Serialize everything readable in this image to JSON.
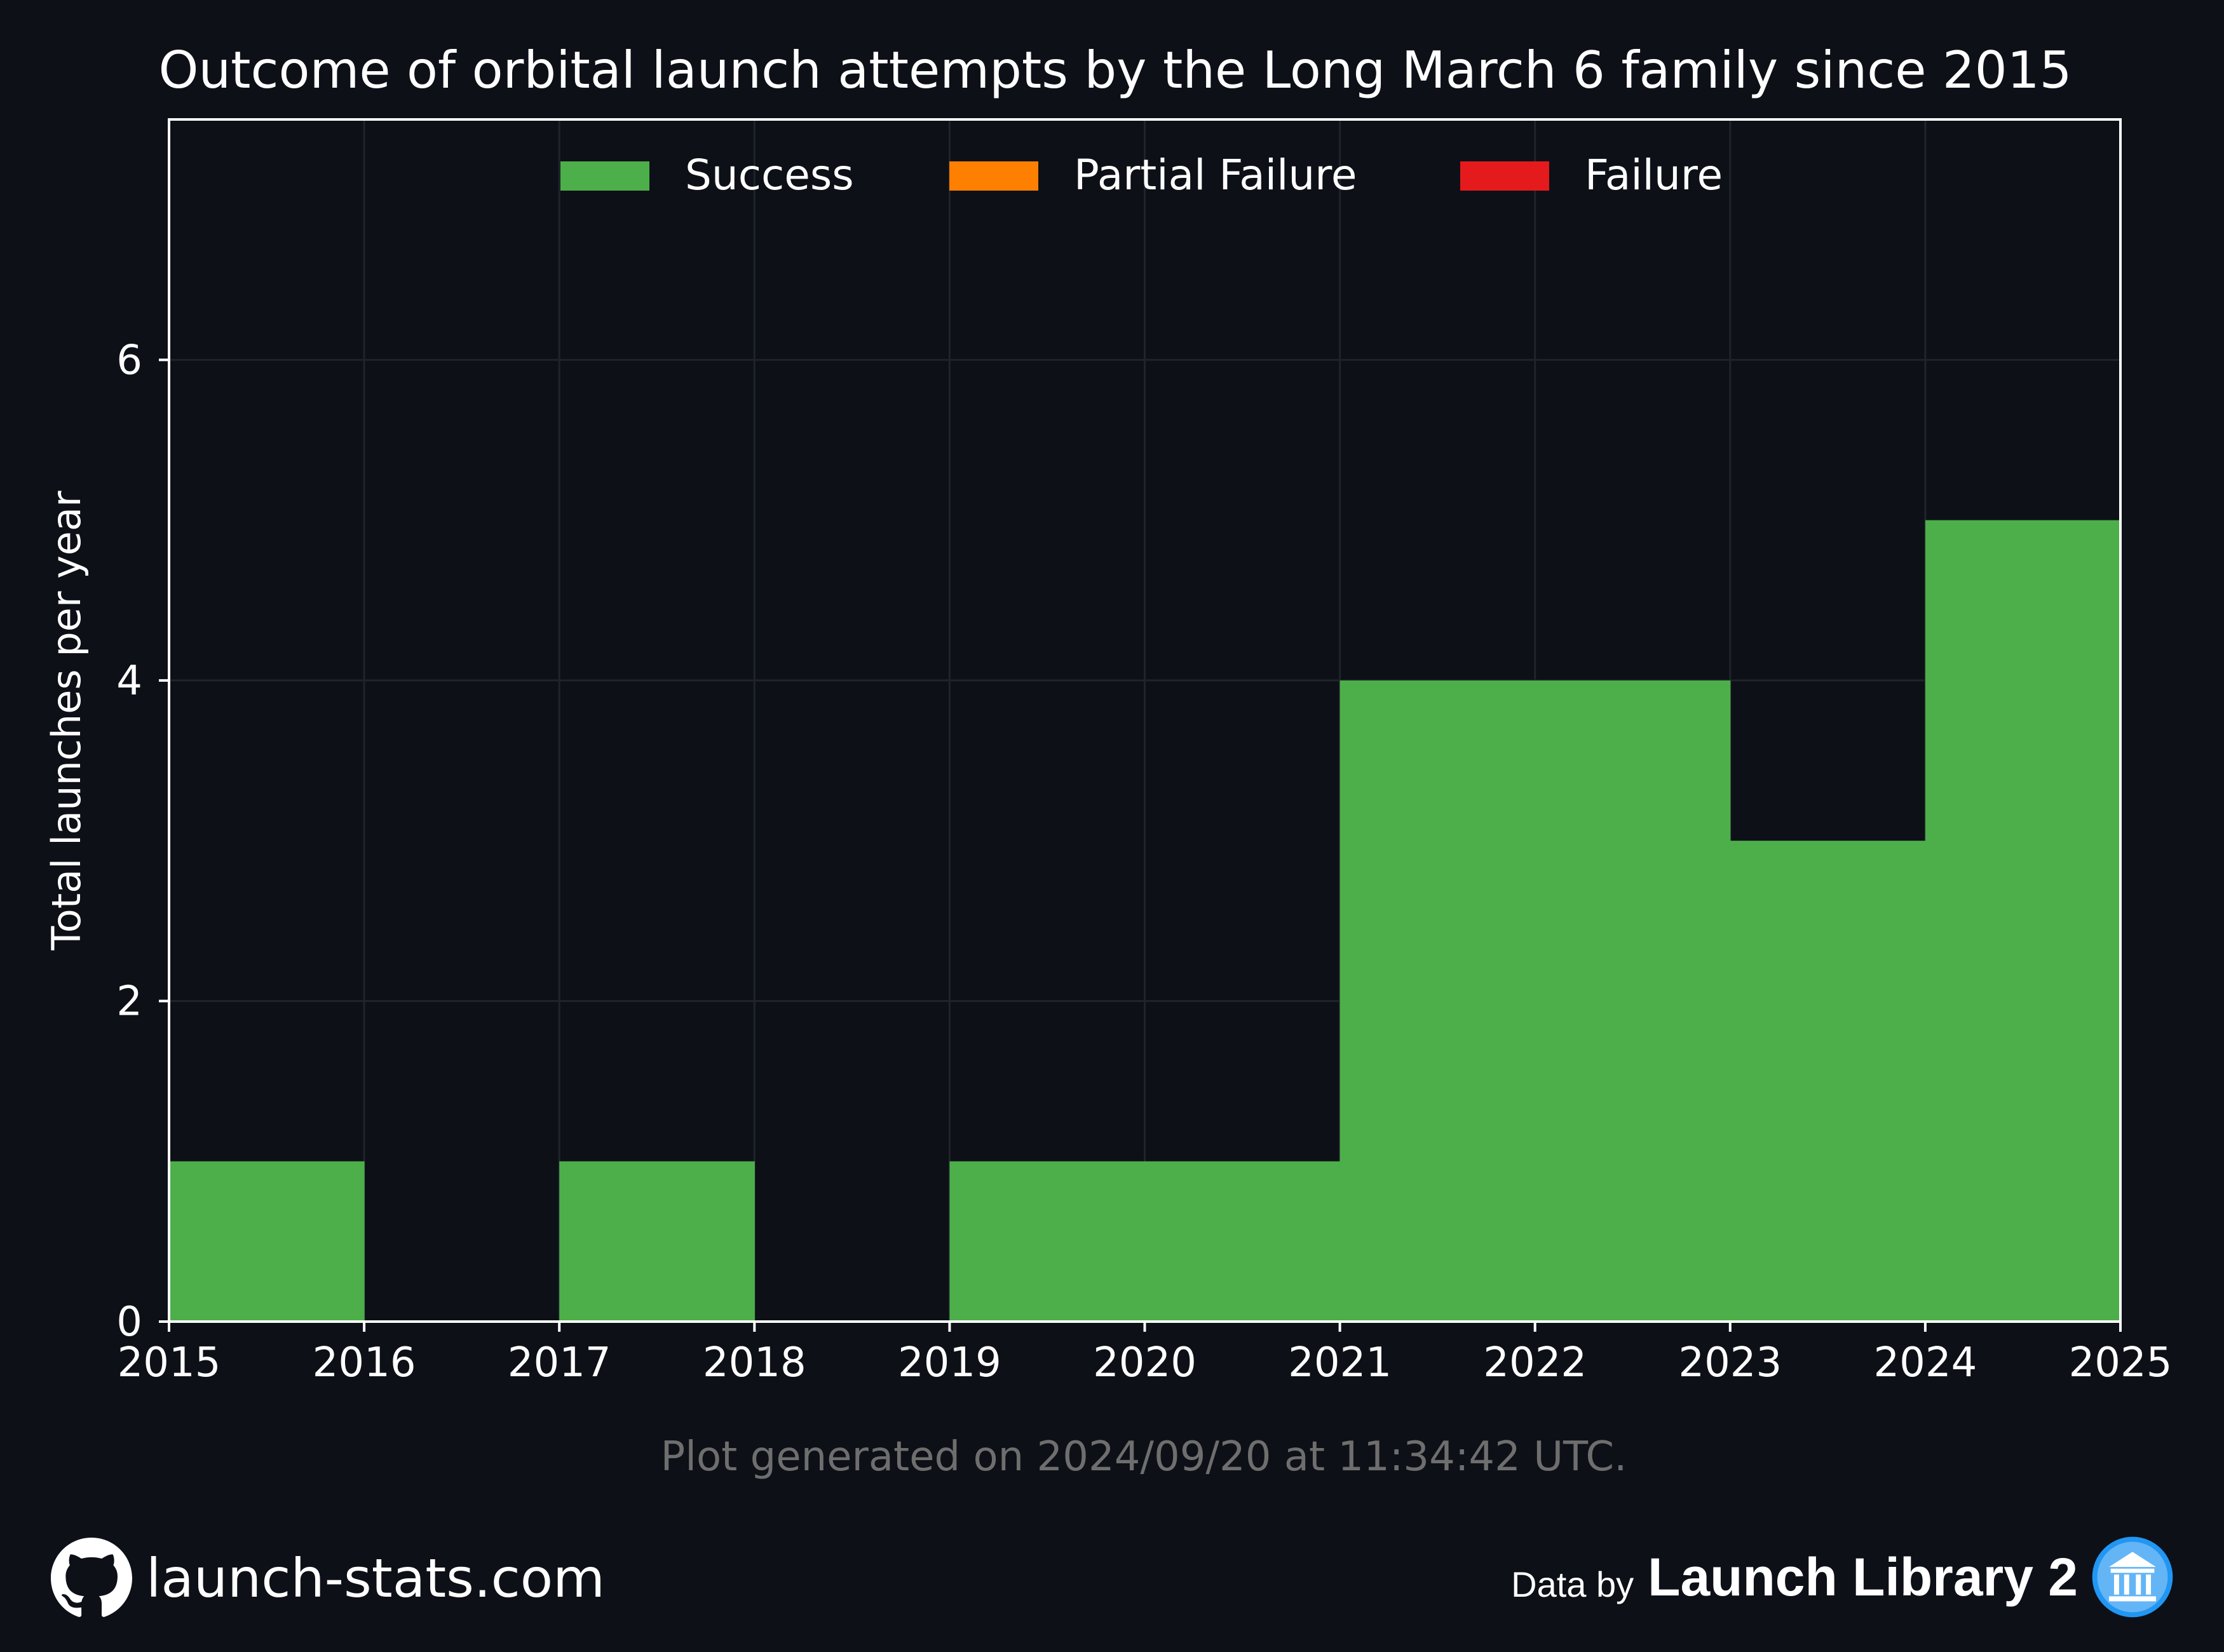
{
  "chart_data": {
    "type": "bar",
    "title": "Outcome of orbital launch attempts by the Long March 6 family since 2015",
    "xlabel": "",
    "ylabel": "Total launches per year",
    "categories": [
      "2015",
      "2016",
      "2017",
      "2018",
      "2019",
      "2020",
      "2021",
      "2022",
      "2023",
      "2024"
    ],
    "series": [
      {
        "name": "Success",
        "color": "#4daf4a",
        "values": [
          1,
          0,
          1,
          0,
          1,
          1,
          4,
          4,
          3,
          5
        ]
      },
      {
        "name": "Partial Failure",
        "color": "#ff7f00",
        "values": [
          0,
          0,
          0,
          0,
          0,
          0,
          0,
          0,
          0,
          0
        ]
      },
      {
        "name": "Failure",
        "color": "#e41a1c",
        "values": [
          0,
          0,
          0,
          0,
          0,
          0,
          0,
          0,
          0,
          0
        ]
      }
    ],
    "xlim": [
      2015,
      2025
    ],
    "ylim": [
      0,
      7.5
    ],
    "x_ticks": [
      "2015",
      "2016",
      "2017",
      "2018",
      "2019",
      "2020",
      "2021",
      "2022",
      "2023",
      "2024",
      "2025"
    ],
    "y_ticks": [
      "0",
      "2",
      "4",
      "6"
    ],
    "grid": true,
    "legend_position": "top-center",
    "stacked": true
  },
  "footnote": "Plot generated on 2024/09/20 at 11:34:42 UTC.",
  "footer": {
    "site": "launch-stats.com",
    "site_icon": "github-icon",
    "data_by": "Data by",
    "source": "Launch Library 2",
    "source_icon": "launch-library-icon"
  },
  "colors": {
    "background": "#0d1017",
    "grid": "#1f242c",
    "text": "#ffffff",
    "footnote": "#6e6e6e"
  }
}
